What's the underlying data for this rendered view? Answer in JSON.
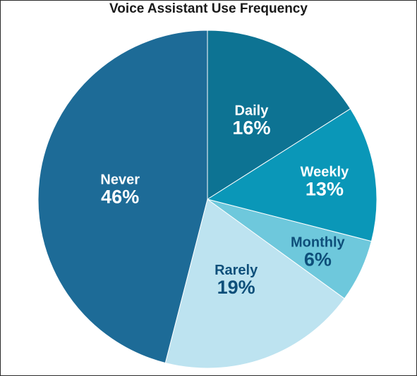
{
  "chart_data": {
    "type": "pie",
    "title": "Voice Assistant Use Frequency",
    "slices": [
      {
        "label": "Daily",
        "value": 16,
        "display": "16%",
        "color": "#0d7393",
        "text_color": "#ffffff"
      },
      {
        "label": "Weekly",
        "value": 13,
        "display": "13%",
        "color": "#0a97b8",
        "text_color": "#ffffff"
      },
      {
        "label": "Monthly",
        "value": 6,
        "display": "6%",
        "color": "#6ec8dc",
        "text_color": "#0e4f7a"
      },
      {
        "label": "Rarely",
        "value": 19,
        "display": "19%",
        "color": "#bde3f0",
        "text_color": "#0e4f7a"
      },
      {
        "label": "Never",
        "value": 46,
        "display": "46%",
        "color": "#1d6b97",
        "text_color": "#ffffff"
      }
    ],
    "start": "12 o'clock",
    "direction": "clockwise",
    "legend": "none"
  }
}
